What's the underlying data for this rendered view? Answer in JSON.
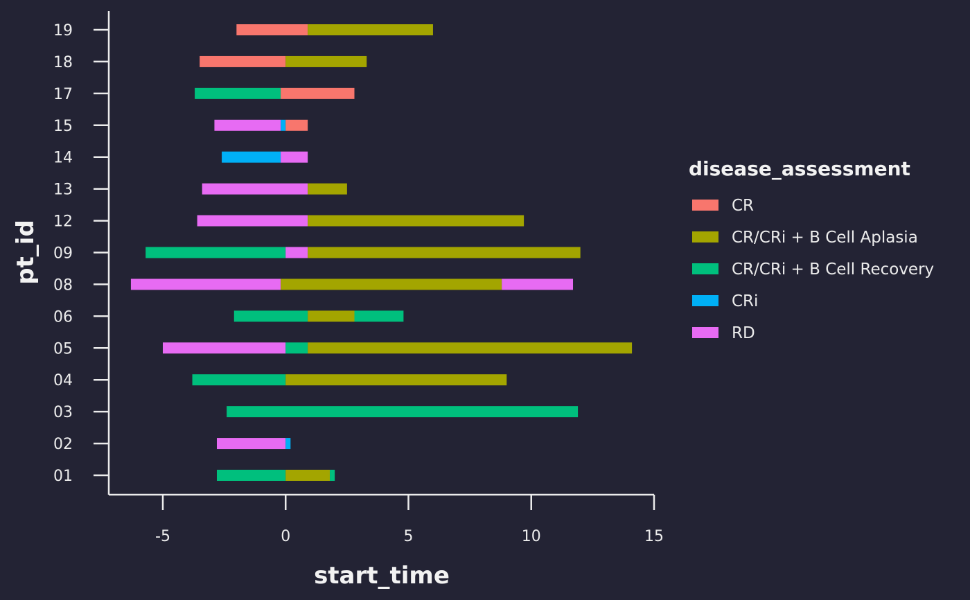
{
  "chart_data": {
    "type": "bar",
    "orientation": "horizontal-segments",
    "xlabel": "start_time",
    "ylabel": "pt_id",
    "xlim": [
      -7.2,
      15
    ],
    "x_ticks": [
      -5,
      0,
      5,
      10,
      15
    ],
    "x_tick_labels": [
      "-5",
      "0",
      "5",
      "10",
      "15"
    ],
    "categories": [
      "01",
      "02",
      "03",
      "04",
      "05",
      "06",
      "08",
      "09",
      "12",
      "13",
      "14",
      "15",
      "17",
      "18",
      "19"
    ],
    "grid": false,
    "legend": {
      "title": "disease_assessment",
      "placement": "right",
      "entries": [
        {
          "label": "CR",
          "color": "#F8766D"
        },
        {
          "label": "CR/CRi + B Cell Aplasia",
          "color": "#A3A500"
        },
        {
          "label": "CR/CRi + B Cell Recovery",
          "color": "#00BF7D"
        },
        {
          "label": "CRi",
          "color": "#00B0F6"
        },
        {
          "label": "RD",
          "color": "#E76BF3"
        }
      ]
    },
    "segments": [
      {
        "pt_id": "01",
        "start": -2.8,
        "end": 0,
        "assessment": "CR/CRi + B Cell Recovery"
      },
      {
        "pt_id": "01",
        "start": 0,
        "end": 1.8,
        "assessment": "CR/CRi + B Cell Aplasia"
      },
      {
        "pt_id": "01",
        "start": 1.8,
        "end": 2.0,
        "assessment": "CR/CRi + B Cell Recovery"
      },
      {
        "pt_id": "02",
        "start": -2.8,
        "end": 0,
        "assessment": "RD"
      },
      {
        "pt_id": "02",
        "start": 0,
        "end": 0.2,
        "assessment": "CRi"
      },
      {
        "pt_id": "03",
        "start": -2.4,
        "end": 11.9,
        "assessment": "CR/CRi + B Cell Recovery"
      },
      {
        "pt_id": "04",
        "start": -3.8,
        "end": 0,
        "assessment": "CR/CRi + B Cell Recovery"
      },
      {
        "pt_id": "04",
        "start": 0,
        "end": 9.0,
        "assessment": "CR/CRi + B Cell Aplasia"
      },
      {
        "pt_id": "05",
        "start": -5.0,
        "end": 0,
        "assessment": "RD"
      },
      {
        "pt_id": "05",
        "start": 0,
        "end": 0.9,
        "assessment": "CR/CRi + B Cell Recovery"
      },
      {
        "pt_id": "05",
        "start": 0.9,
        "end": 14.1,
        "assessment": "CR/CRi + B Cell Aplasia"
      },
      {
        "pt_id": "06",
        "start": -2.1,
        "end": 0.9,
        "assessment": "CR/CRi + B Cell Recovery"
      },
      {
        "pt_id": "06",
        "start": 0.9,
        "end": 2.8,
        "assessment": "CR/CRi + B Cell Aplasia"
      },
      {
        "pt_id": "06",
        "start": 2.8,
        "end": 4.8,
        "assessment": "CR/CRi + B Cell Recovery"
      },
      {
        "pt_id": "08",
        "start": -6.3,
        "end": -0.2,
        "assessment": "RD"
      },
      {
        "pt_id": "08",
        "start": -0.2,
        "end": 8.8,
        "assessment": "CR/CRi + B Cell Aplasia"
      },
      {
        "pt_id": "08",
        "start": 8.8,
        "end": 11.7,
        "assessment": "RD"
      },
      {
        "pt_id": "09",
        "start": -5.7,
        "end": 0,
        "assessment": "CR/CRi + B Cell Recovery"
      },
      {
        "pt_id": "09",
        "start": 0,
        "end": 0.9,
        "assessment": "RD"
      },
      {
        "pt_id": "09",
        "start": 0.9,
        "end": 12.0,
        "assessment": "CR/CRi + B Cell Aplasia"
      },
      {
        "pt_id": "12",
        "start": -3.6,
        "end": 0.9,
        "assessment": "RD"
      },
      {
        "pt_id": "12",
        "start": 0.9,
        "end": 9.7,
        "assessment": "CR/CRi + B Cell Aplasia"
      },
      {
        "pt_id": "13",
        "start": -3.4,
        "end": 0.9,
        "assessment": "RD"
      },
      {
        "pt_id": "13",
        "start": 0.9,
        "end": 2.5,
        "assessment": "CR/CRi + B Cell Aplasia"
      },
      {
        "pt_id": "14",
        "start": -2.6,
        "end": -0.2,
        "assessment": "CRi"
      },
      {
        "pt_id": "14",
        "start": -0.2,
        "end": 0.9,
        "assessment": "RD"
      },
      {
        "pt_id": "15",
        "start": -2.9,
        "end": -0.2,
        "assessment": "RD"
      },
      {
        "pt_id": "15",
        "start": -0.2,
        "end": 0,
        "assessment": "CRi"
      },
      {
        "pt_id": "15",
        "start": 0,
        "end": 0.9,
        "assessment": "CR"
      },
      {
        "pt_id": "17",
        "start": -3.7,
        "end": -0.2,
        "assessment": "CR/CRi + B Cell Recovery"
      },
      {
        "pt_id": "17",
        "start": -0.2,
        "end": 2.8,
        "assessment": "CR"
      },
      {
        "pt_id": "18",
        "start": -3.5,
        "end": 0,
        "assessment": "CR"
      },
      {
        "pt_id": "18",
        "start": 0,
        "end": 3.3,
        "assessment": "CR/CRi + B Cell Aplasia"
      },
      {
        "pt_id": "19",
        "start": -2.0,
        "end": 0.9,
        "assessment": "CR"
      },
      {
        "pt_id": "19",
        "start": 0.9,
        "end": 6.0,
        "assessment": "CR/CRi + B Cell Aplasia"
      }
    ]
  }
}
